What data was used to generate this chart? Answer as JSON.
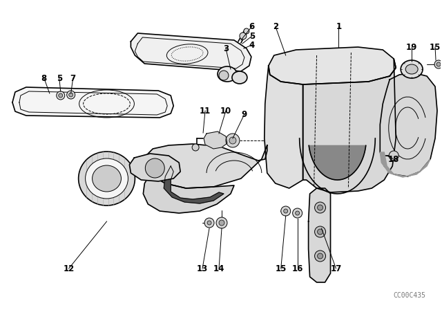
{
  "bg_color": "#ffffff",
  "diagram_color": "#000000",
  "watermark": "CC00C435",
  "fig_width": 6.4,
  "fig_height": 4.48,
  "dpi": 100,
  "lw_main": 1.2,
  "lw_thin": 0.7,
  "lw_thick": 2.0,
  "label_fontsize": 8.5,
  "watermark_fontsize": 7
}
